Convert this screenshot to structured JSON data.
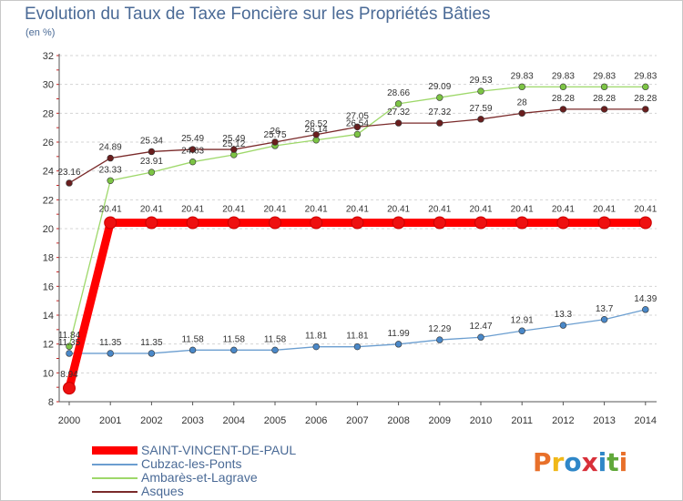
{
  "title": "Evolution du Taux de Taxe Foncière sur les Propriétés Bâties",
  "subtitle": "(en %)",
  "brand": {
    "logo_text": "Proxiti",
    "logo_colors": [
      "#e8702a",
      "#f0b818",
      "#2f87c8",
      "#d8303a",
      "#2f87c8",
      "#60a83a",
      "#e8702a"
    ]
  },
  "chart_data": {
    "type": "line",
    "title": "Evolution du Taux de Taxe Foncière sur les Propriétés Bâties",
    "ylabel": "(en %)",
    "xlabel": "",
    "ylim": [
      8,
      32
    ],
    "yticks": [
      8,
      10,
      12,
      14,
      16,
      18,
      20,
      22,
      24,
      26,
      28,
      30,
      32
    ],
    "grid": "horizontal dashed",
    "legend_position": "bottom-left",
    "categories": [
      "2000",
      "2001",
      "2002",
      "2003",
      "2004",
      "2005",
      "2006",
      "2007",
      "2008",
      "2009",
      "2010",
      "2011",
      "2012",
      "2013",
      "2014"
    ],
    "series": [
      {
        "name": "SAINT-VINCENT-DE-PAUL",
        "color": "#ff0000",
        "marker_color": "#ee1010",
        "emphasis": "thick",
        "values": [
          8.94,
          20.41,
          20.41,
          20.41,
          20.41,
          20.41,
          20.41,
          20.41,
          20.41,
          20.41,
          20.41,
          20.41,
          20.41,
          20.41,
          20.41
        ],
        "labels": [
          "8.94",
          "20.41",
          "20.41",
          "20.41",
          "20.41",
          "20.41",
          "20.41",
          "20.41",
          "20.41",
          "20.41",
          "20.41",
          "20.41",
          "20.41",
          "20.41",
          "20.41"
        ]
      },
      {
        "name": "Cubzac-les-Ponts",
        "color": "#6b9ed0",
        "marker_color": "#4a88c8",
        "emphasis": "normal",
        "values": [
          11.35,
          11.35,
          11.35,
          11.58,
          11.58,
          11.58,
          11.81,
          11.81,
          11.99,
          12.29,
          12.47,
          12.91,
          13.3,
          13.7,
          14.39
        ],
        "labels": [
          "11.35",
          "11.35",
          "11.35",
          "11.58",
          "11.58",
          "11.58",
          "11.81",
          "11.81",
          "11.99",
          "12.29",
          "12.47",
          "12.91",
          "13.3",
          "13.7",
          "14.39"
        ]
      },
      {
        "name": "Ambarès-et-Lagrave",
        "color": "#9ed86a",
        "marker_color": "#7cc444",
        "emphasis": "normal",
        "values": [
          11.84,
          23.33,
          23.91,
          24.63,
          25.12,
          25.75,
          26.14,
          26.54,
          28.66,
          29.09,
          29.53,
          29.83,
          29.83,
          29.83,
          29.83
        ],
        "labels": [
          "11.84",
          "23.33",
          "23.91",
          "24.63",
          "25.12",
          "25.75",
          "26.14",
          "26.54",
          "28.66",
          "29.09",
          "29.53",
          "29.83",
          "29.83",
          "29.83",
          "29.83"
        ]
      },
      {
        "name": "Asques",
        "color": "#7a2a2a",
        "marker_color": "#6a1e1e",
        "emphasis": "normal",
        "values": [
          23.16,
          24.89,
          25.34,
          25.49,
          25.49,
          26,
          26.52,
          27.05,
          27.32,
          27.32,
          27.59,
          28,
          28.28,
          28.28,
          28.28
        ],
        "labels": [
          "23.16",
          "24.89",
          "25.34",
          "25.49",
          "25.49",
          "26",
          "26.52",
          "27.05",
          "27.32",
          "27.32",
          "27.59",
          "28",
          "28.28",
          "28.28",
          "28.28"
        ]
      }
    ]
  }
}
